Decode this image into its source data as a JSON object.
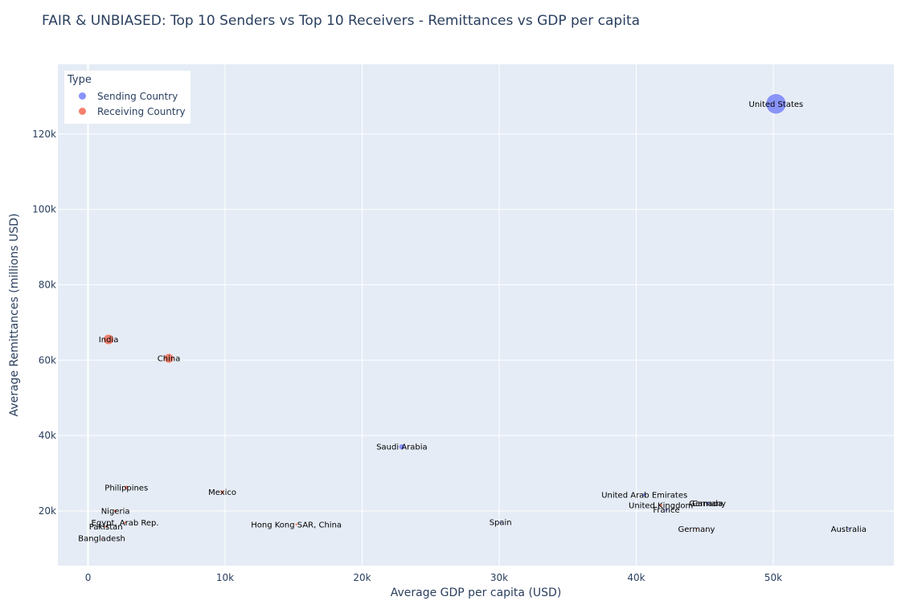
{
  "chart_data": {
    "type": "scatter",
    "title": "FAIR & UNBIASED: Top 10 Senders vs Top 10 Receivers - Remittances vs GDP per capita",
    "xlabel": "Average GDP per capita (USD)",
    "ylabel": "Average Remittances (millions USD)",
    "xlim": [
      -2200,
      58800
    ],
    "ylim": [
      5500,
      138500
    ],
    "x_ticks": [
      0,
      10000,
      20000,
      30000,
      40000,
      50000
    ],
    "x_tick_labels": [
      "0",
      "10k",
      "20k",
      "30k",
      "40k",
      "50k"
    ],
    "y_ticks": [
      20000,
      40000,
      60000,
      80000,
      100000,
      120000
    ],
    "y_tick_labels": [
      "20k",
      "40k",
      "60k",
      "80k",
      "100k",
      "120k"
    ],
    "grid": true,
    "plot_background": "#e5ecf6",
    "legend": {
      "title": "Type",
      "placement": "top-left"
    },
    "series": [
      {
        "name": "Sending Country",
        "color": "#636efa",
        "points": [
          {
            "label": "United States",
            "x": 50200,
            "y": 128000,
            "size": 128000
          },
          {
            "label": "Saudi Arabia",
            "x": 22900,
            "y": 37000,
            "size": 37000
          },
          {
            "label": "United Arab Emirates",
            "x": 40600,
            "y": 24300,
            "size": 24300
          },
          {
            "label": "Canada",
            "x": 45200,
            "y": 22000,
            "size": 22000
          },
          {
            "label": "France",
            "x": 42200,
            "y": 20300,
            "size": 20300
          },
          {
            "label": "Spain",
            "x": 30100,
            "y": 17000,
            "size": 17000
          },
          {
            "label": "Australia",
            "x": 55500,
            "y": 15200,
            "size": 15200
          }
        ]
      },
      {
        "name": "Receiving Country",
        "color": "#ef553b",
        "points": [
          {
            "label": "India",
            "x": 1500,
            "y": 65500,
            "size": 65500
          },
          {
            "label": "China",
            "x": 5900,
            "y": 60500,
            "size": 60500
          },
          {
            "label": "Philippines",
            "x": 2800,
            "y": 26200,
            "size": 26200
          },
          {
            "label": "Mexico",
            "x": 9800,
            "y": 25000,
            "size": 25000
          },
          {
            "label": "Nigeria",
            "x": 2000,
            "y": 20000,
            "size": 20000
          },
          {
            "label": "Egypt, Arab Rep.",
            "x": 2700,
            "y": 16900,
            "size": 16900
          },
          {
            "label": "Pakistan",
            "x": 1300,
            "y": 15800,
            "size": 15800
          },
          {
            "label": "Hong Kong SAR, China",
            "x": 15200,
            "y": 16400,
            "size": 16400
          },
          {
            "label": "Bangladesh",
            "x": 1000,
            "y": 12700,
            "size": 12700
          },
          {
            "label": "United Kingdom",
            "x": 41800,
            "y": 21500,
            "size": 21500
          },
          {
            "label": "Germany",
            "x": 44400,
            "y": 15200,
            "size": 15200
          }
        ]
      }
    ],
    "extra_labels": [
      {
        "label": "Germany",
        "x": 45200,
        "y": 22000
      }
    ]
  }
}
